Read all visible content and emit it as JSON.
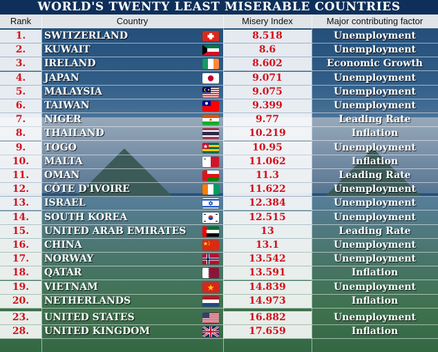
{
  "header": {
    "title": "WORLD'S TWENTY LEAST MISERABLE COUNTRIES",
    "col_rank": "Rank",
    "col_country": "Country",
    "col_index": "Misery Index",
    "col_factor": "Major contributing factor"
  },
  "colors": {
    "title_bg": "#0e2f5a",
    "accent_red": "#d4101c",
    "text_white": "#ffffff"
  },
  "chart_data": {
    "type": "table",
    "title": "WORLD'S TWENTY LEAST MISERABLE COUNTRIES",
    "columns": [
      "Rank",
      "Country",
      "Misery Index",
      "Major contributing factor"
    ],
    "rows": [
      {
        "rank": "1.",
        "country": "SWITZERLAND",
        "index": "8.518",
        "factor": "Unemployment",
        "flag": "switzerland-flag-icon"
      },
      {
        "rank": "2.",
        "country": "KUWAIT",
        "index": "8.6",
        "factor": "Unemployment",
        "flag": "kuwait-flag-icon"
      },
      {
        "rank": "3.",
        "country": "IRELAND",
        "index": "8.602",
        "factor": "Economic Growth",
        "flag": "ireland-flag-icon"
      },
      {
        "rank": "4.",
        "country": "JAPAN",
        "index": "9.071",
        "factor": "Unemployment",
        "flag": "japan-flag-icon"
      },
      {
        "rank": "5.",
        "country": "MALAYSIA",
        "index": "9.075",
        "factor": "Unemployment",
        "flag": "malaysia-flag-icon"
      },
      {
        "rank": "6.",
        "country": "TAIWAN",
        "index": "9.399",
        "factor": "Unemployment",
        "flag": "taiwan-flag-icon"
      },
      {
        "rank": "7.",
        "country": "NIGER",
        "index": "9.77",
        "factor": "Leading Rate",
        "flag": "niger-flag-icon"
      },
      {
        "rank": "8.",
        "country": "THAILAND",
        "index": "10.219",
        "factor": "Inflation",
        "flag": "thailand-flag-icon"
      },
      {
        "rank": "9.",
        "country": "TOGO",
        "index": "10.95",
        "factor": "Unemployment",
        "flag": "togo-flag-icon"
      },
      {
        "rank": "10.",
        "country": "MALTA",
        "index": "11.062",
        "factor": "Inflation",
        "flag": "malta-flag-icon"
      },
      {
        "rank": "11.",
        "country": "OMAN",
        "index": "11.3",
        "factor": "Leading Rate",
        "flag": "oman-flag-icon"
      },
      {
        "rank": "12.",
        "country": "CÔTE D'IVOIRE",
        "index": "11.622",
        "factor": "Unemployment",
        "flag": "cote-divoire-flag-icon"
      },
      {
        "rank": "13.",
        "country": "ISRAEL",
        "index": "12.384",
        "factor": "Unemployment",
        "flag": "israel-flag-icon"
      },
      {
        "rank": "14.",
        "country": "SOUTH KOREA",
        "index": "12.515",
        "factor": "Unemployment",
        "flag": "south-korea-flag-icon"
      },
      {
        "rank": "15.",
        "country": "UNITED ARAB EMIRATES",
        "index": "13",
        "factor": "Leading Rate",
        "flag": "uae-flag-icon"
      },
      {
        "rank": "16.",
        "country": "CHINA",
        "index": "13.1",
        "factor": "Unemployment",
        "flag": "china-flag-icon"
      },
      {
        "rank": "17.",
        "country": "NORWAY",
        "index": "13.542",
        "factor": "Unemployment",
        "flag": "norway-flag-icon"
      },
      {
        "rank": "18.",
        "country": "QATAR",
        "index": "13.591",
        "factor": "Inflation",
        "flag": "qatar-flag-icon"
      },
      {
        "rank": "19.",
        "country": "VIETNAM",
        "index": "14.839",
        "factor": "Unemployment",
        "flag": "vietnam-flag-icon"
      },
      {
        "rank": "20.",
        "country": "NETHERLANDS",
        "index": "14.973",
        "factor": "Inflation",
        "flag": "netherlands-flag-icon"
      },
      {
        "rank": "23.",
        "country": "UNITED STATES",
        "index": "16.882",
        "factor": "Unemployment",
        "flag": "usa-flag-icon"
      },
      {
        "rank": "28.",
        "country": "UNITED KINGDOM",
        "index": "17.659",
        "factor": "Inflation",
        "flag": "uk-flag-icon"
      }
    ]
  }
}
